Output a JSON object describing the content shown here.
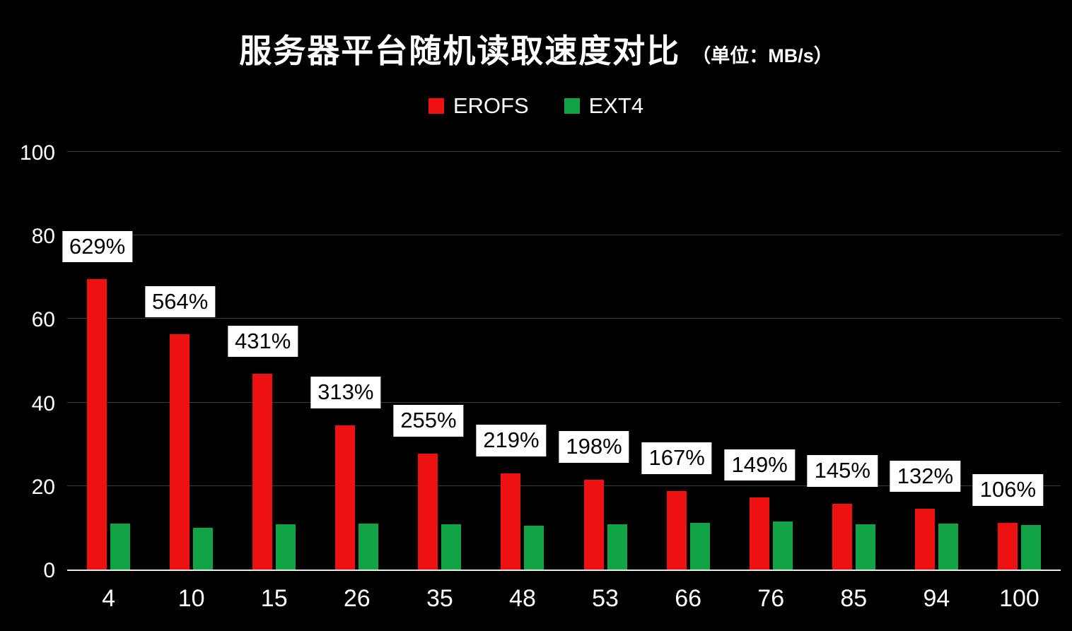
{
  "chart": {
    "title": "服务器平台随机读取速度对比",
    "subtitle": "（单位：MB/s）",
    "background_color": "#000000",
    "grid_color": "#3a3a3a",
    "axis_color": "#eaeaea",
    "text_color": "#ffffff",
    "label_box_bg": "#ffffff",
    "label_box_text": "#000000"
  },
  "chart_data": {
    "type": "bar",
    "title": "服务器平台随机读取速度对比",
    "subtitle": "（单位：MB/s）",
    "categories": [
      "4",
      "10",
      "15",
      "26",
      "35",
      "48",
      "53",
      "66",
      "76",
      "85",
      "94",
      "100"
    ],
    "series": [
      {
        "name": "EROFS",
        "color": "#ee1111",
        "values": [
          69.5,
          56.3,
          46.8,
          34.5,
          27.8,
          23.0,
          21.5,
          18.8,
          17.2,
          15.8,
          14.5,
          11.2
        ]
      },
      {
        "name": "EXT4",
        "color": "#12a347",
        "values": [
          11.0,
          10.0,
          10.9,
          11.0,
          10.9,
          10.5,
          10.9,
          11.2,
          11.5,
          10.9,
          11.0,
          10.6
        ]
      }
    ],
    "bar_labels": [
      "629%",
      "564%",
      "431%",
      "313%",
      "255%",
      "219%",
      "198%",
      "167%",
      "149%",
      "145%",
      "132%",
      "106%"
    ],
    "legend": [
      "EROFS",
      "EXT4"
    ],
    "legend_position": "top",
    "xlabel": "",
    "ylabel": "",
    "ylim": [
      0,
      100
    ],
    "yticks": [
      0,
      20,
      40,
      60,
      80,
      100
    ],
    "grid": true
  }
}
